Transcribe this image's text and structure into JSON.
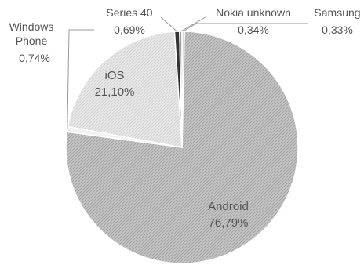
{
  "chart_data": {
    "type": "pie",
    "slices": [
      {
        "name": "Android",
        "value": 76.79,
        "label": "76,79%",
        "color": "#bdbdbd",
        "pattern": "dense"
      },
      {
        "name": "Windows Phone",
        "value": 0.74,
        "label": "0,74%",
        "color": "#f2f2f2",
        "pattern": "none"
      },
      {
        "name": "iOS",
        "value": 21.1,
        "label": "21,10%",
        "color": "#e6e6e6",
        "pattern": "light"
      },
      {
        "name": "Series 40",
        "value": 0.69,
        "label": "0,69%",
        "color": "#333333",
        "pattern": "none"
      },
      {
        "name": "Nokia unknown",
        "value": 0.34,
        "label": "0,34%",
        "color": "#9e9e9e",
        "pattern": "none"
      },
      {
        "name": "Samsung",
        "value": 0.33,
        "label": "0,33%",
        "color": "#d9d9d9",
        "pattern": "none"
      }
    ],
    "title": "",
    "legend": "none",
    "label_style": "category-and-value"
  }
}
